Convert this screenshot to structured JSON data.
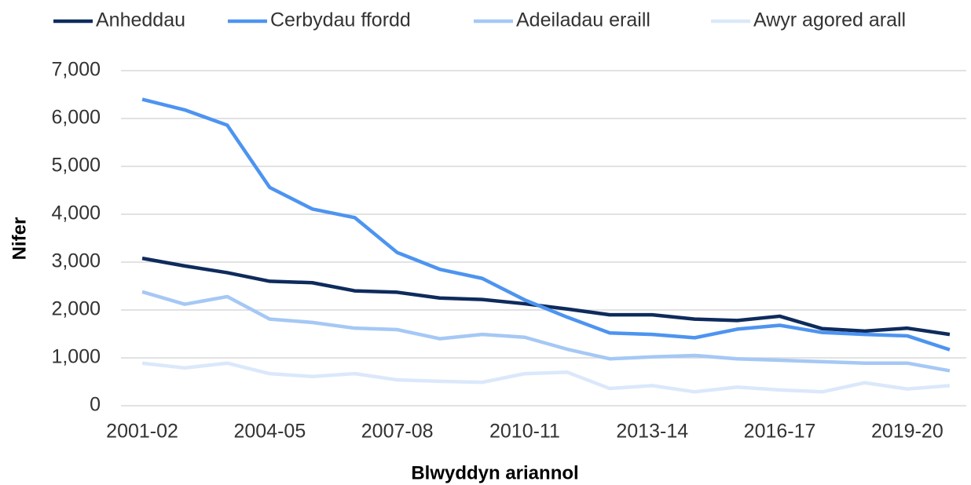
{
  "chart_data": {
    "type": "line",
    "xlabel": "Blwyddyn ariannol",
    "ylabel": "Nifer",
    "categories": [
      "2001-02",
      null,
      null,
      "2004-05",
      null,
      null,
      "2007-08",
      null,
      null,
      "2010-11",
      null,
      null,
      "2013-14",
      null,
      null,
      "2016-17",
      null,
      null,
      "2019-20",
      null
    ],
    "series": [
      {
        "name": "Anheddau",
        "color": "#0e2b5c",
        "values": [
          3080,
          2920,
          2780,
          2600,
          2570,
          2400,
          2370,
          2250,
          2220,
          2130,
          2020,
          1900,
          1900,
          1810,
          1780,
          1870,
          1610,
          1560,
          1620,
          1490
        ]
      },
      {
        "name": "Cerbydau ffordd",
        "color": "#4d94f0",
        "values": [
          6400,
          6180,
          5860,
          4560,
          4110,
          3930,
          3200,
          2850,
          2660,
          2210,
          1850,
          1520,
          1490,
          1420,
          1600,
          1680,
          1530,
          1490,
          1460,
          1170
        ]
      },
      {
        "name": "Adeiladau eraill",
        "color": "#a5c8f5",
        "values": [
          2380,
          2120,
          2280,
          1810,
          1740,
          1620,
          1590,
          1400,
          1490,
          1430,
          1180,
          980,
          1020,
          1050,
          980,
          950,
          920,
          890,
          890,
          730
        ]
      },
      {
        "name": "Awyr agored arall",
        "color": "#dbe8fb",
        "values": [
          890,
          790,
          890,
          670,
          610,
          670,
          540,
          510,
          490,
          670,
          700,
          360,
          420,
          290,
          390,
          330,
          290,
          480,
          350,
          420
        ]
      }
    ],
    "ylim": [
      0,
      7000
    ],
    "yticks": [
      0,
      {
        "value": 1000,
        "label": "1,000"
      },
      {
        "value": 2000,
        "label": "2,000"
      },
      {
        "value": 3000,
        "label": "3,000"
      },
      {
        "value": 4000,
        "label": "4,000"
      },
      {
        "value": 5000,
        "label": "5,000"
      },
      {
        "value": 6000,
        "label": "6,000"
      },
      {
        "value": 7000,
        "label": "7,000"
      }
    ],
    "grid": true,
    "legend": "top"
  }
}
